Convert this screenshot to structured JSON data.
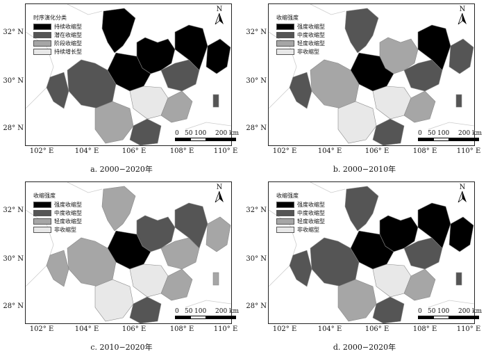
{
  "panels": [
    {
      "caption": "a.  2000−2020年",
      "legend_title": "时序演化分类",
      "legend": [
        {
          "label": "持续收缩型",
          "color": "#000000"
        },
        {
          "label": "潜在收缩型",
          "color": "#555555"
        },
        {
          "label": "阶段收缩型",
          "color": "#a6a6a6"
        },
        {
          "label": "持续增长型",
          "color": "#e8e8e8"
        }
      ],
      "fills": [
        "#000000",
        "#000000",
        "#000000",
        "#555555",
        "#a6a6a6",
        "#555555",
        "#e8e8e8",
        "#555555",
        "#000000",
        "#a6a6a6",
        "#555555",
        "#000000"
      ]
    },
    {
      "caption": "b.  2000−2010年",
      "legend_title": "收缩强度",
      "legend": [
        {
          "label": "强度收缩型",
          "color": "#000000"
        },
        {
          "label": "中度收缩型",
          "color": "#555555"
        },
        {
          "label": "轻度收缩型",
          "color": "#a6a6a6"
        },
        {
          "label": "非收缩型",
          "color": "#e8e8e8"
        }
      ],
      "fills": [
        "#555555",
        "#a6a6a6",
        "#000000",
        "#a6a6a6",
        "#e8e8e8",
        "#555555",
        "#e8e8e8",
        "#555555",
        "#000000",
        "#a6a6a6",
        "#555555",
        "#555555"
      ]
    },
    {
      "caption": "c.  2010−2020年",
      "legend_title": "收缩强度",
      "legend": [
        {
          "label": "强度收缩型",
          "color": "#000000"
        },
        {
          "label": "中度收缩型",
          "color": "#555555"
        },
        {
          "label": "轻度收缩型",
          "color": "#a6a6a6"
        },
        {
          "label": "非收缩型",
          "color": "#e8e8e8"
        }
      ],
      "fills": [
        "#a6a6a6",
        "#555555",
        "#000000",
        "#a6a6a6",
        "#e8e8e8",
        "#a6a6a6",
        "#e8e8e8",
        "#a6a6a6",
        "#555555",
        "#a6a6a6",
        "#555555",
        "#a6a6a6"
      ]
    },
    {
      "caption": "d.  2000−2020年",
      "legend_title": "收缩强度",
      "legend": [
        {
          "label": "强度收缩型",
          "color": "#000000"
        },
        {
          "label": "中度收缩型",
          "color": "#555555"
        },
        {
          "label": "轻度收缩型",
          "color": "#a6a6a6"
        },
        {
          "label": "非收缩型",
          "color": "#e8e8e8"
        }
      ],
      "fills": [
        "#555555",
        "#000000",
        "#000000",
        "#555555",
        "#a6a6a6",
        "#555555",
        "#e8e8e8",
        "#555555",
        "#000000",
        "#a6a6a6",
        "#555555",
        "#000000"
      ]
    }
  ],
  "lat_labels": [
    "32° N",
    "30° N",
    "28° N"
  ],
  "lon_labels": [
    "102° E",
    "104° E",
    "106° E",
    "108° E",
    "110° E"
  ],
  "north_label": "N",
  "scale": {
    "ticks": [
      "0",
      "50",
      "100",
      "200 km"
    ]
  }
}
